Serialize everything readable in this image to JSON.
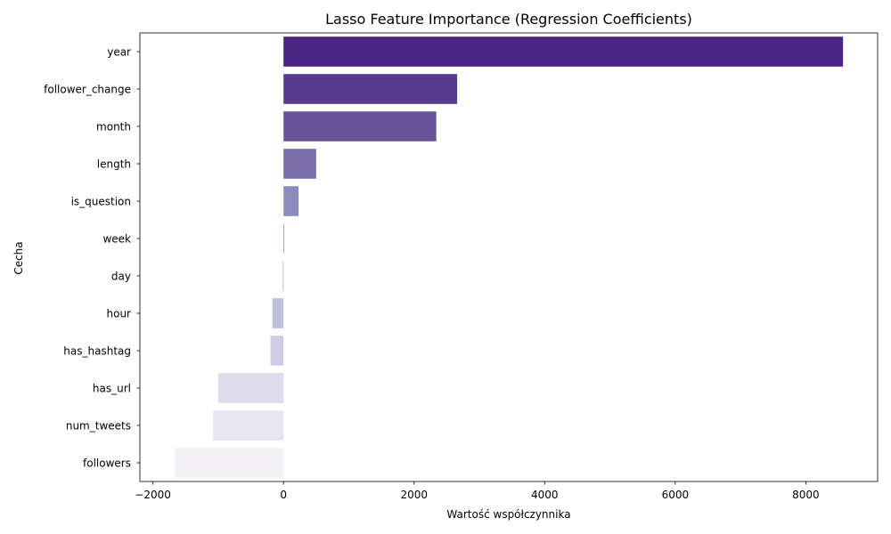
{
  "chart_data": {
    "type": "bar",
    "orientation": "horizontal",
    "title": "Lasso Feature Importance (Regression Coefficients)",
    "xlabel": "Wartość współczynnika",
    "ylabel": "Cecha",
    "categories": [
      "year",
      "follower_change",
      "month",
      "length",
      "is_question",
      "week",
      "day",
      "hour",
      "has_hashtag",
      "has_url",
      "num_tweets",
      "followers"
    ],
    "values": [
      8570,
      2660,
      2340,
      500,
      230,
      0,
      -10,
      -170,
      -200,
      -1000,
      -1080,
      -1660
    ],
    "colors": [
      "#4c2483",
      "#583a8e",
      "#6a5499",
      "#7a6fab",
      "#8e8bbd",
      "#a09dca",
      "#b0aed4",
      "#c0bedd",
      "#cfcde5",
      "#dedcec",
      "#e8e6f1",
      "#f3f0f6"
    ],
    "xlim": [
      -2200,
      9100
    ],
    "xticks": [
      -2000,
      0,
      2000,
      4000,
      6000,
      8000
    ],
    "xtick_labels": [
      "−2000",
      "0",
      "2000",
      "4000",
      "6000",
      "8000"
    ],
    "grid": false,
    "legend": false
  }
}
